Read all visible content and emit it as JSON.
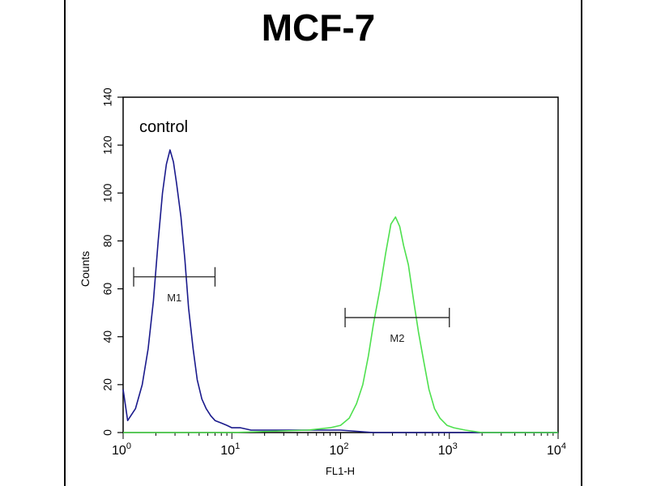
{
  "chart_data": {
    "type": "line",
    "title": "MCF-7",
    "xlabel": "FL1-H",
    "ylabel": "Counts",
    "x_scale": "log",
    "xlim": [
      1,
      10000
    ],
    "ylim": [
      0,
      140
    ],
    "x_ticks": [
      {
        "base": "10",
        "exp": "0"
      },
      {
        "base": "10",
        "exp": "1"
      },
      {
        "base": "10",
        "exp": "2"
      },
      {
        "base": "10",
        "exp": "3"
      },
      {
        "base": "10",
        "exp": "4"
      }
    ],
    "y_ticks": [
      "0",
      "20",
      "40",
      "60",
      "80",
      "100",
      "120",
      "140"
    ],
    "grid": false,
    "annotations": {
      "control_label": "control"
    },
    "markers": [
      {
        "label": "M1",
        "x_start": 1.25,
        "x_end": 7.0,
        "y": 65
      },
      {
        "label": "M2",
        "x_start": 110,
        "x_end": 1000,
        "y": 48
      }
    ],
    "series": [
      {
        "name": "control",
        "color": "#1a1a8c",
        "x": [
          1,
          1.1,
          1.3,
          1.5,
          1.7,
          1.9,
          2.1,
          2.3,
          2.5,
          2.7,
          2.9,
          3.1,
          3.4,
          3.7,
          4.0,
          4.4,
          4.8,
          5.3,
          5.8,
          6.4,
          7.0,
          8.0,
          9.0,
          10,
          12,
          15,
          20,
          30,
          50,
          100,
          200,
          500,
          1000,
          3000,
          10000
        ],
        "y": [
          18,
          5,
          10,
          20,
          35,
          55,
          80,
          100,
          112,
          118,
          113,
          104,
          90,
          72,
          52,
          35,
          22,
          14,
          10,
          7,
          5,
          4,
          3,
          2,
          2,
          1,
          1,
          1,
          1,
          1,
          0,
          0,
          0,
          0,
          0
        ]
      },
      {
        "name": "",
        "color": "#4ee04e",
        "x": [
          1,
          10,
          50,
          80,
          100,
          120,
          140,
          160,
          180,
          200,
          230,
          260,
          290,
          320,
          350,
          380,
          420,
          470,
          520,
          580,
          650,
          730,
          820,
          950,
          1100,
          1400,
          2000,
          10000
        ],
        "y": [
          0,
          0,
          1,
          2,
          3,
          6,
          12,
          20,
          32,
          45,
          60,
          75,
          87,
          90,
          86,
          78,
          70,
          55,
          42,
          30,
          18,
          10,
          6,
          3,
          2,
          1,
          0,
          0
        ]
      }
    ]
  }
}
